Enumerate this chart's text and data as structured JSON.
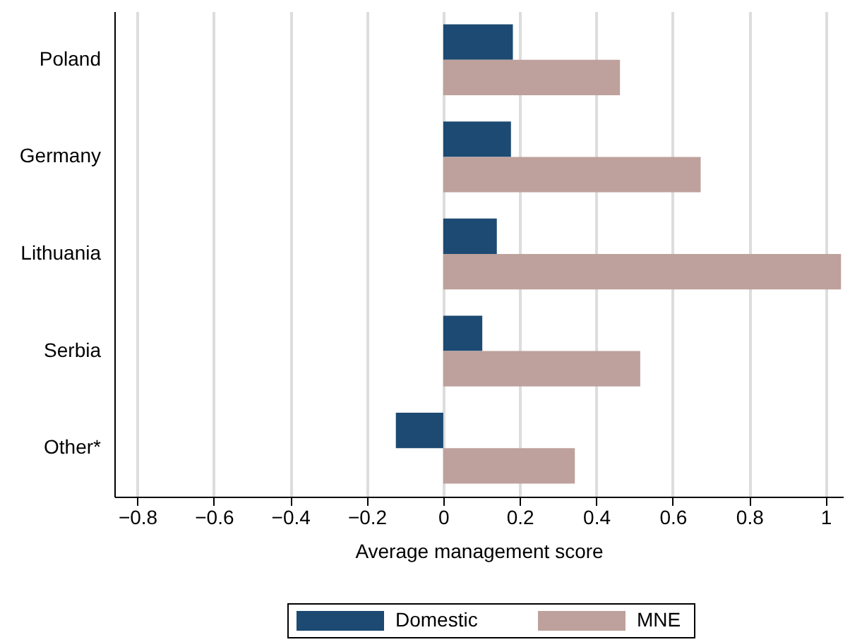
{
  "chart_data": {
    "type": "bar",
    "orientation": "horizontal",
    "xlabel": "Average management score",
    "categories": [
      "Poland",
      "Germany",
      "Lithuania",
      "Serbia",
      "Other*"
    ],
    "series": [
      {
        "name": "Domestic",
        "color": "#1c4a72",
        "values": [
          0.182,
          0.177,
          0.14,
          0.102,
          -0.124
        ]
      },
      {
        "name": "MNE",
        "color": "#bea19c",
        "values": [
          0.462,
          0.673,
          1.04,
          0.515,
          0.344
        ]
      }
    ],
    "xlim": [
      -0.86,
      1.045
    ],
    "xticks": [
      {
        "value": -0.8,
        "label": "−0.8"
      },
      {
        "value": -0.6,
        "label": "−0.6"
      },
      {
        "value": -0.4,
        "label": "−0.4"
      },
      {
        "value": -0.2,
        "label": "−0.2"
      },
      0,
      0.2,
      0.4,
      0.6,
      0.8,
      1
    ],
    "grid": "x",
    "legend": "bottom"
  }
}
